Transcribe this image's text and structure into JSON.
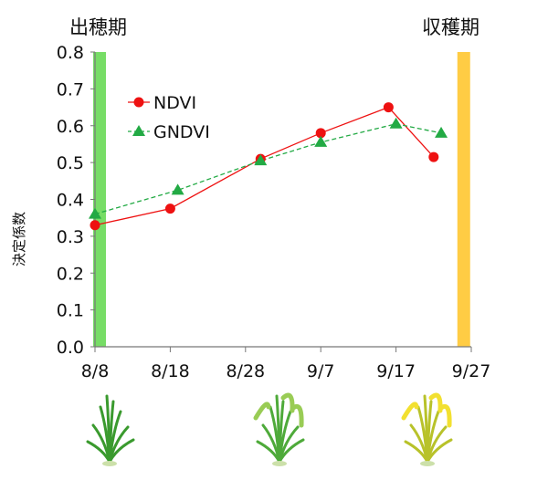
{
  "stage_labels": {
    "heading": "出穂期",
    "harvest": "収穫期"
  },
  "chart_data": {
    "type": "line",
    "title": "",
    "xlabel": "",
    "ylabel": "決定係数",
    "x_ticks": [
      "8/8",
      "8/18",
      "8/28",
      "9/7",
      "9/17",
      "9/27"
    ],
    "x_tick_days": [
      0,
      10,
      20,
      30,
      40,
      50
    ],
    "ylim": [
      0,
      0.8
    ],
    "y_ticks": [
      "0.0",
      "0.1",
      "0.2",
      "0.3",
      "0.4",
      "0.5",
      "0.6",
      "0.7",
      "0.8"
    ],
    "grid": false,
    "legend_position": "top-left",
    "series": [
      {
        "name": "NDVI",
        "color": "#ee1111",
        "marker": "circle",
        "line": "solid",
        "x": [
          "8/8",
          "8/18",
          "8/30",
          "9/7",
          "9/16",
          "9/22"
        ],
        "x_days": [
          0,
          10,
          22,
          30,
          39,
          45
        ],
        "values": [
          0.33,
          0.375,
          0.51,
          0.58,
          0.65,
          0.515
        ]
      },
      {
        "name": "GNDVI",
        "color": "#22aa44",
        "marker": "triangle",
        "line": "dashed",
        "x": [
          "8/8",
          "8/19",
          "8/30",
          "9/7",
          "9/17",
          "9/23"
        ],
        "x_days": [
          0,
          11,
          22,
          30,
          40,
          46
        ],
        "values": [
          0.36,
          0.425,
          0.505,
          0.555,
          0.605,
          0.58
        ]
      }
    ],
    "bands": [
      {
        "name": "heading",
        "at": "8/8",
        "color": "#77dd66"
      },
      {
        "name": "harvest",
        "at": "9/26",
        "color": "#ffcc44"
      }
    ]
  }
}
